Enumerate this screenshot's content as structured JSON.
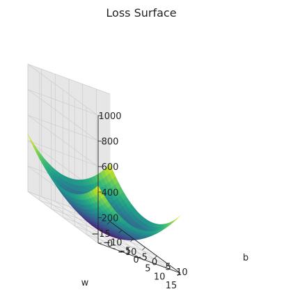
{
  "chart_data": {
    "type": "surface",
    "title": "Loss Surface",
    "xlabel": "w",
    "ylabel": "b",
    "zlabel": "",
    "function": "loss = w^2 + b^2",
    "x_range": [
      -15,
      15
    ],
    "y_range": [
      -15,
      15
    ],
    "z_range": [
      0,
      1000
    ],
    "x_ticks": [
      "−15",
      "−10",
      "−5",
      "0",
      "5",
      "10",
      "15"
    ],
    "y_ticks": [
      "−10",
      "−5",
      "0",
      "5",
      "10"
    ],
    "z_ticks": [
      "0",
      "200",
      "400",
      "600",
      "800",
      "1000"
    ],
    "colormap": "viridis",
    "grid": true,
    "pane_color": "#f2f2f2"
  }
}
